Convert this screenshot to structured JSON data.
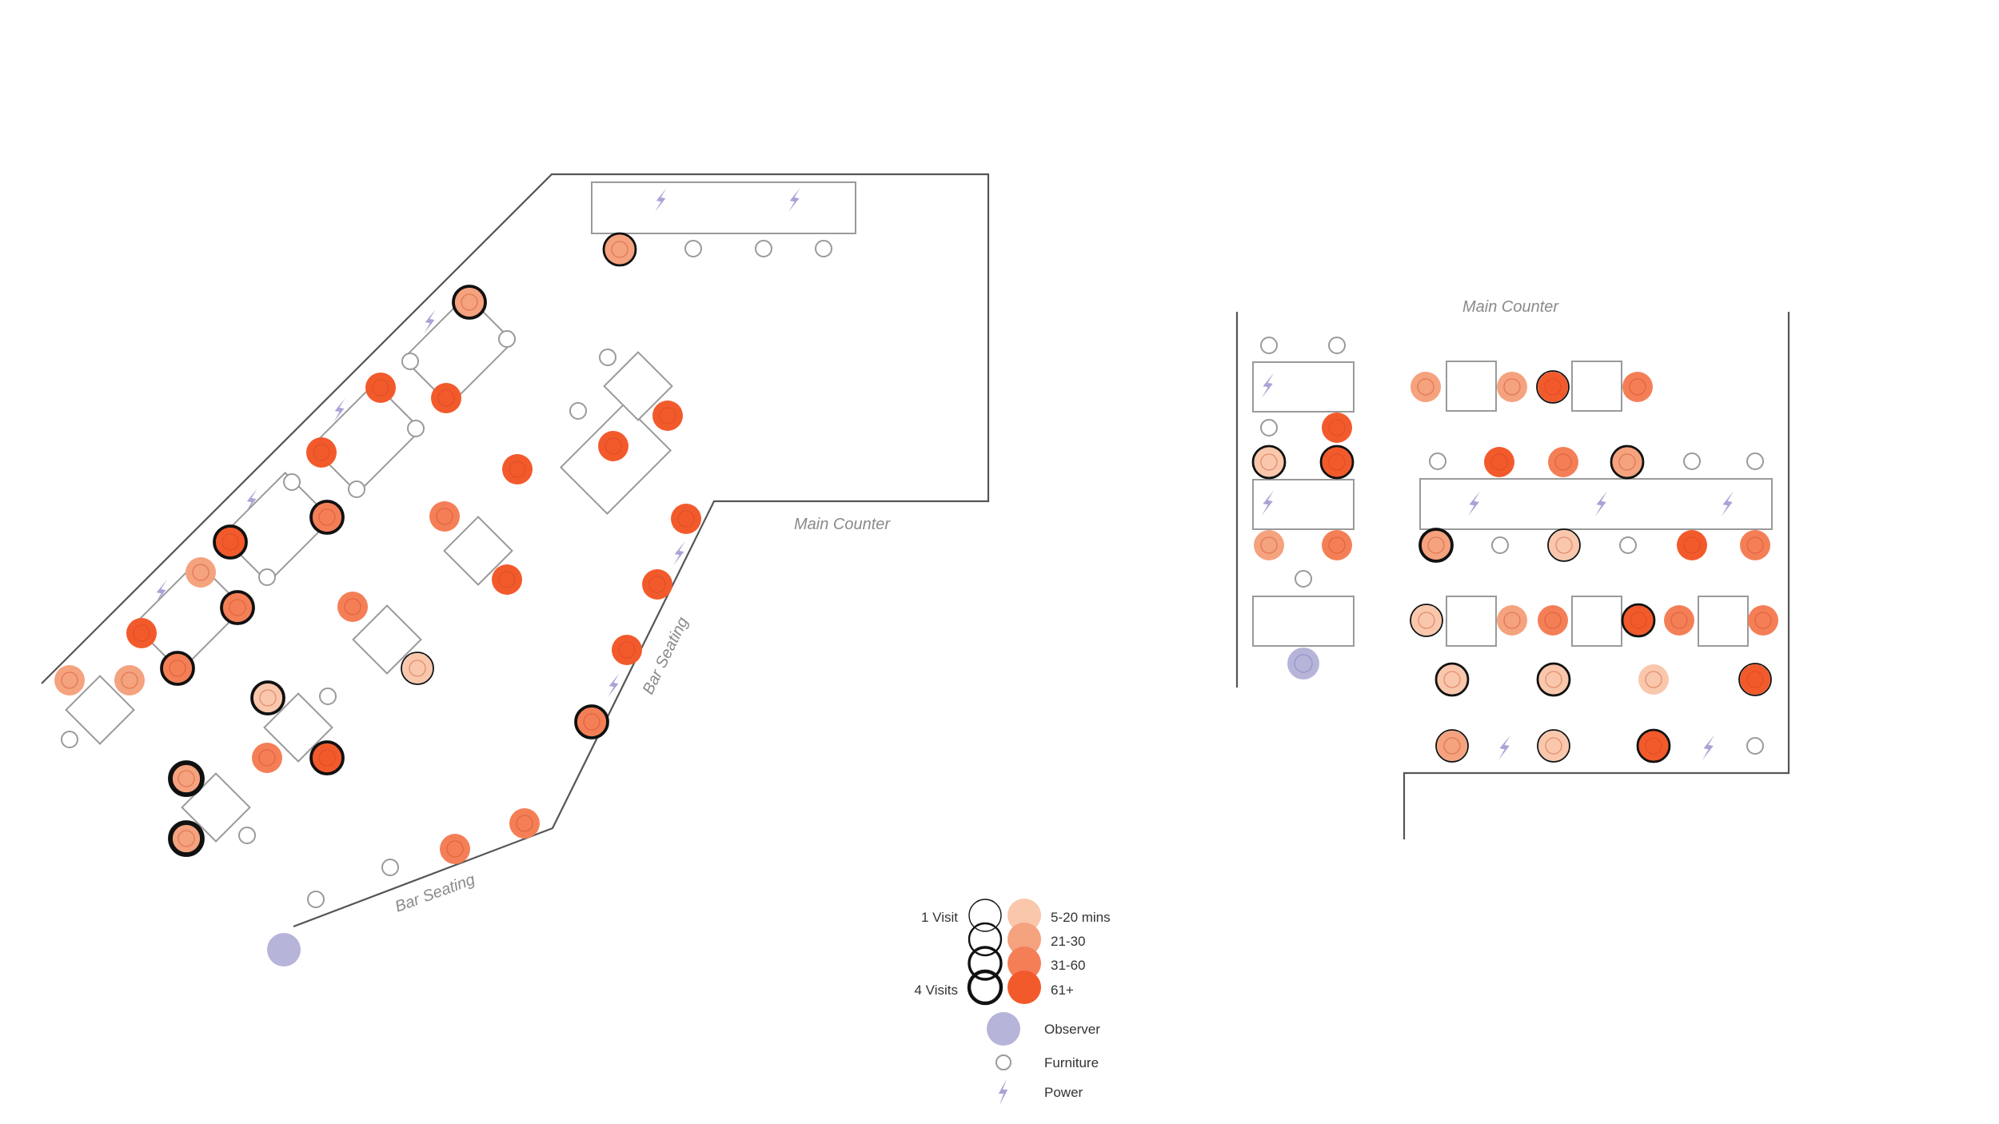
{
  "labels": {
    "main_counter_left": "Main Counter",
    "main_counter_right": "Main Counter",
    "bar_seating_bottom": "Bar Seating",
    "bar_seating_side": "Bar Seating"
  },
  "legend": {
    "visits_first": "1 Visit",
    "visits_last": "4 Visits",
    "duration": [
      "5-20 mins",
      "21-30",
      "31-60",
      "61+"
    ],
    "observer": "Observer",
    "furniture": "Furniture",
    "power": "Power"
  },
  "colors": {
    "duration": [
      "#f9c7ac",
      "#f5a27e",
      "#f47f57",
      "#f25a2c"
    ],
    "observer": "#b7b4da",
    "power": "#a9a4d6",
    "furniture_stroke": "#9a9a9a",
    "wall": "#555555"
  },
  "visit_levels": [
    1,
    2,
    3,
    4
  ],
  "icons": {
    "power": "lightning-bolt-icon",
    "observer": "observer-dot-icon",
    "furniture": "empty-seat-icon"
  }
}
